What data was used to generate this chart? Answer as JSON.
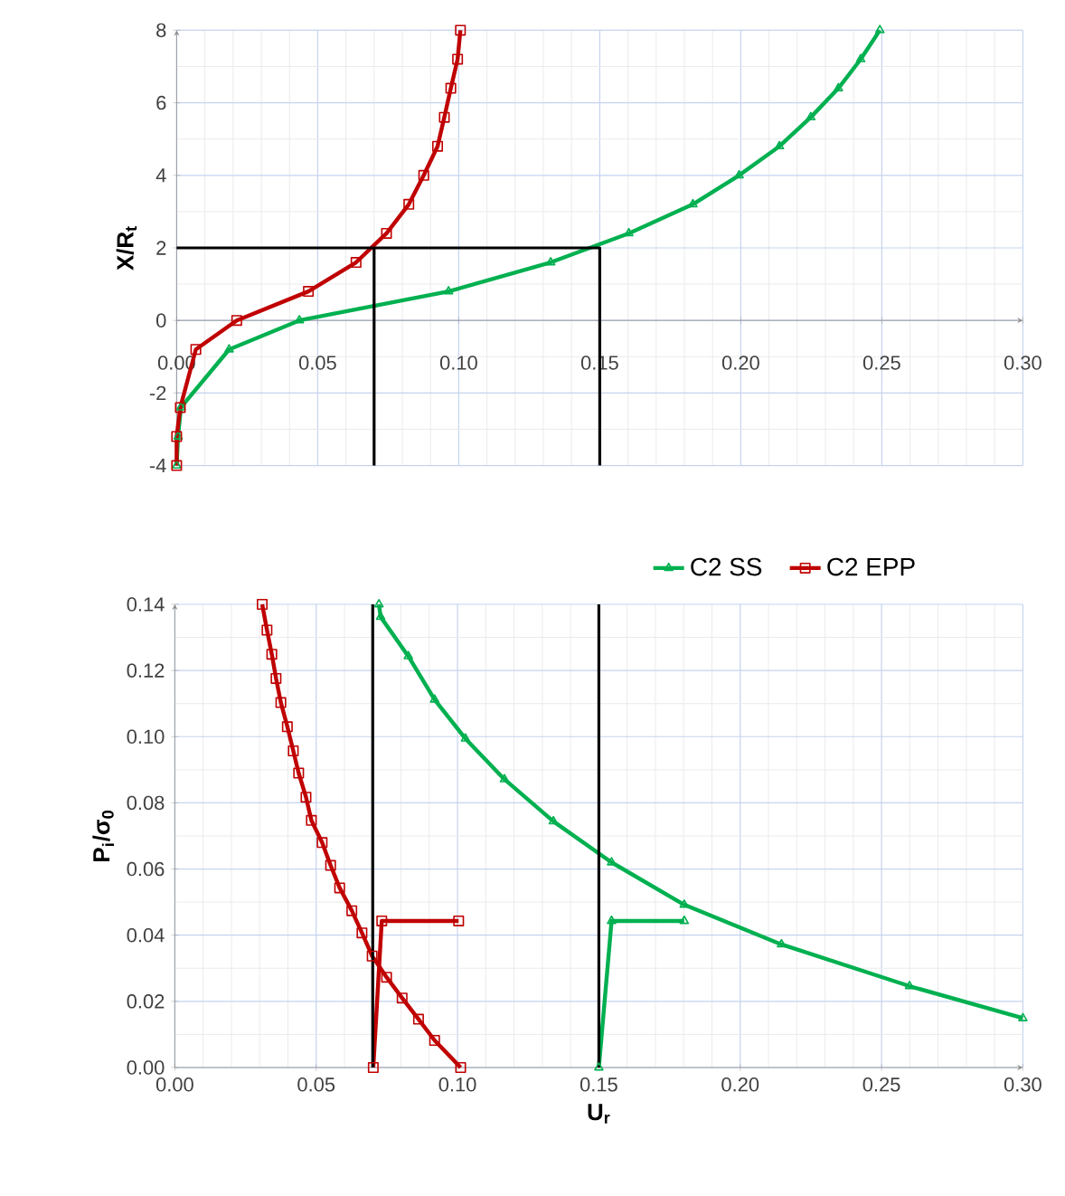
{
  "chart_data": [
    {
      "type": "line",
      "ylabel": "X/R$_{t}$",
      "xlim": [
        0,
        0.3
      ],
      "ylim": [
        -4,
        8
      ],
      "xticks": [
        {
          "value": 0,
          "label": "0.00"
        },
        {
          "value": 0.05,
          "label": "0.05"
        },
        {
          "value": 0.1,
          "label": "0.10"
        },
        {
          "value": 0.15,
          "label": "0.15"
        },
        {
          "value": 0.2,
          "label": "0.20"
        },
        {
          "value": 0.25,
          "label": "0.25"
        },
        {
          "value": 0.3,
          "label": "0.30"
        }
      ],
      "yticks": [
        -4,
        -2,
        0,
        2,
        4,
        6,
        8
      ],
      "grid": true,
      "legend": false,
      "series": [
        {
          "color": "#00b050",
          "marker": "triangle",
          "x": [
            0,
            0.0005,
            0.0015,
            0.0186,
            0.0435,
            0.0964,
            0.1326,
            0.1603,
            0.183,
            0.1994,
            0.2137,
            0.2248,
            0.2346,
            0.2425,
            0.2493
          ],
          "values": [
            -4,
            -3.2,
            -2.4,
            -0.8,
            0,
            0.8,
            1.6,
            2.4,
            3.2,
            4,
            4.8,
            5.6,
            6.4,
            7.2,
            8
          ]
        },
        {
          "color": "#c00000",
          "marker": "square",
          "x": [
            0,
            0,
            0.0013,
            0.0068,
            0.0213,
            0.0467,
            0.0636,
            0.0744,
            0.0823,
            0.0876,
            0.0925,
            0.0949,
            0.0972,
            0.0996,
            0.1006
          ],
          "values": [
            -4,
            -3.2,
            -2.4,
            -0.8,
            0,
            0.8,
            1.6,
            2.4,
            3.2,
            4,
            4.8,
            5.6,
            6.4,
            7.2,
            8
          ]
        },
        {
          "color": "#000000",
          "marker": "none",
          "x": [
            0,
            0.15,
            0.15
          ],
          "values": [
            2,
            2,
            -4
          ]
        },
        {
          "color": "#000000",
          "marker": "none",
          "x": [
            0.07,
            0.07
          ],
          "values": [
            2,
            -4
          ]
        }
      ]
    },
    {
      "type": "line",
      "xlabel": "U$_{r}$",
      "ylabel": "P$_{i}$/σ$_{0}$",
      "xlim": [
        0,
        0.3
      ],
      "ylim": [
        0,
        0.14
      ],
      "xticks": [
        {
          "value": 0,
          "label": "0.00"
        },
        {
          "value": 0.05,
          "label": "0.05"
        },
        {
          "value": 0.1,
          "label": "0.10"
        },
        {
          "value": 0.15,
          "label": "0.15"
        },
        {
          "value": 0.2,
          "label": "0.20"
        },
        {
          "value": 0.25,
          "label": "0.25"
        },
        {
          "value": 0.3,
          "label": "0.30"
        }
      ],
      "yticks": [
        {
          "value": 0,
          "label": "0.00"
        },
        {
          "value": 0.02,
          "label": "0.02"
        },
        {
          "value": 0.04,
          "label": "0.04"
        },
        {
          "value": 0.06,
          "label": "0.06"
        },
        {
          "value": 0.08,
          "label": "0.08"
        },
        {
          "value": 0.1,
          "label": "0.10"
        },
        {
          "value": 0.12,
          "label": "0.12"
        },
        {
          "value": 0.14,
          "label": "0.14"
        }
      ],
      "grid": true,
      "legend": "top",
      "series": [
        {
          "name": "C2 SS",
          "color": "#00b050",
          "marker": "triangle",
          "x": [
            0.0722,
            0.0728,
            0.0826,
            0.0919,
            0.1028,
            0.1166,
            0.1339,
            0.1545,
            0.1802,
            0.2146,
            0.2599,
            0.3
          ],
          "values": [
            0.14,
            0.1362,
            0.1243,
            0.1112,
            0.0994,
            0.0871,
            0.0744,
            0.062,
            0.0492,
            0.0372,
            0.0246,
            0.0149
          ]
        },
        {
          "name": "C2 EPP",
          "color": "#c00000",
          "marker": "square",
          "x": [
            0.0309,
            0.0326,
            0.0343,
            0.0358,
            0.0375,
            0.0398,
            0.0419,
            0.0438,
            0.0464,
            0.0483,
            0.0521,
            0.0551,
            0.0583,
            0.0626,
            0.0662,
            0.0698,
            0.0749,
            0.0804,
            0.0862,
            0.0919,
            0.1011
          ],
          "values": [
            0.14,
            0.1322,
            0.1249,
            0.1176,
            0.1103,
            0.103,
            0.0957,
            0.089,
            0.0817,
            0.0747,
            0.068,
            0.0611,
            0.0543,
            0.0474,
            0.0407,
            0.0337,
            0.0273,
            0.021,
            0.0146,
            0.0082,
            0
          ]
        },
        {
          "color": "#00b050",
          "marker": "triangle",
          "x": [
            0.15,
            0.1545,
            0.1802
          ],
          "values": [
            0,
            0.0443,
            0.0443
          ]
        },
        {
          "color": "#c00000",
          "marker": "square",
          "x": [
            0.0702,
            0.0732,
            0.1004
          ],
          "values": [
            0,
            0.0443,
            0.0443
          ]
        },
        {
          "color": "#000000",
          "marker": "none",
          "x": [
            0.07,
            0.07
          ],
          "values": [
            0.14,
            0
          ]
        },
        {
          "color": "#000000",
          "marker": "none",
          "x": [
            0.15,
            0.15
          ],
          "values": [
            0.14,
            0
          ]
        }
      ]
    }
  ]
}
